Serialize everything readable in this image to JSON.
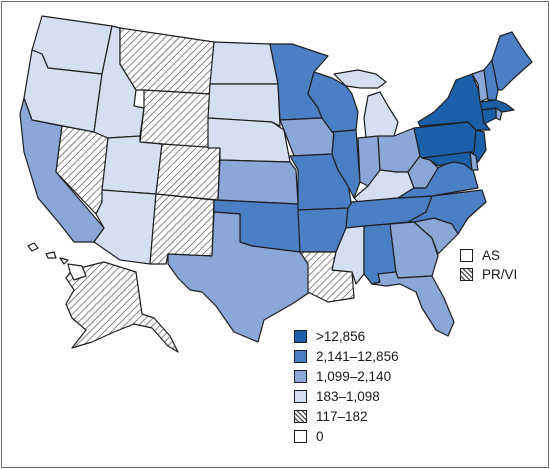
{
  "colors": {
    "c1": "#1a5fa8",
    "c2": "#4a7fc6",
    "c3": "#8aa7d8",
    "c4": "#d5dff2",
    "hatch": "#ffffff",
    "zero": "#ffffff",
    "border": "#1e1e1e"
  },
  "legend": [
    {
      "label": ">12,856",
      "cls": "c1"
    },
    {
      "label": "2,141–12,856",
      "cls": "c2"
    },
    {
      "label": "1,099–2,140",
      "cls": "c3"
    },
    {
      "label": "183–1,098",
      "cls": "c4"
    },
    {
      "label": "117–182",
      "cls": "hatch"
    },
    {
      "label": "0",
      "cls": "zero"
    }
  ],
  "territories": [
    {
      "label": "AS",
      "cls": "zero"
    },
    {
      "label": "PR/VI",
      "cls": "hatch"
    }
  ],
  "states": {
    "WA": "c4",
    "OR": "c4",
    "CA": "c3",
    "NV": "hatch",
    "ID": "c4",
    "MT": "hatch",
    "WY": "hatch",
    "UT": "c4",
    "AZ": "c4",
    "CO": "hatch",
    "NM": "hatch",
    "ND": "c4",
    "SD": "c4",
    "NE": "c4",
    "KS": "c3",
    "OK": "c2",
    "TX": "c3",
    "MN": "c2",
    "IA": "c3",
    "MO": "c2",
    "AR": "c2",
    "LA": "hatch",
    "WI": "c2",
    "IL": "c2",
    "MI": "c4",
    "IN": "c3",
    "OH": "c3",
    "KY": "c4",
    "TN": "c2",
    "MS": "c4",
    "AL": "c2",
    "GA": "c3",
    "FL": "c3",
    "SC": "c3",
    "NC": "c2",
    "VA": "c2",
    "WV": "c3",
    "PA": "c1",
    "NY": "c1",
    "NJ": "c1",
    "MD": "c1",
    "DE": "c3",
    "CT": "c1",
    "RI": "c3",
    "MA": "c1",
    "VT": "c3",
    "NH": "c2",
    "ME": "c2",
    "AK": "hatch",
    "HI": "zero"
  }
}
